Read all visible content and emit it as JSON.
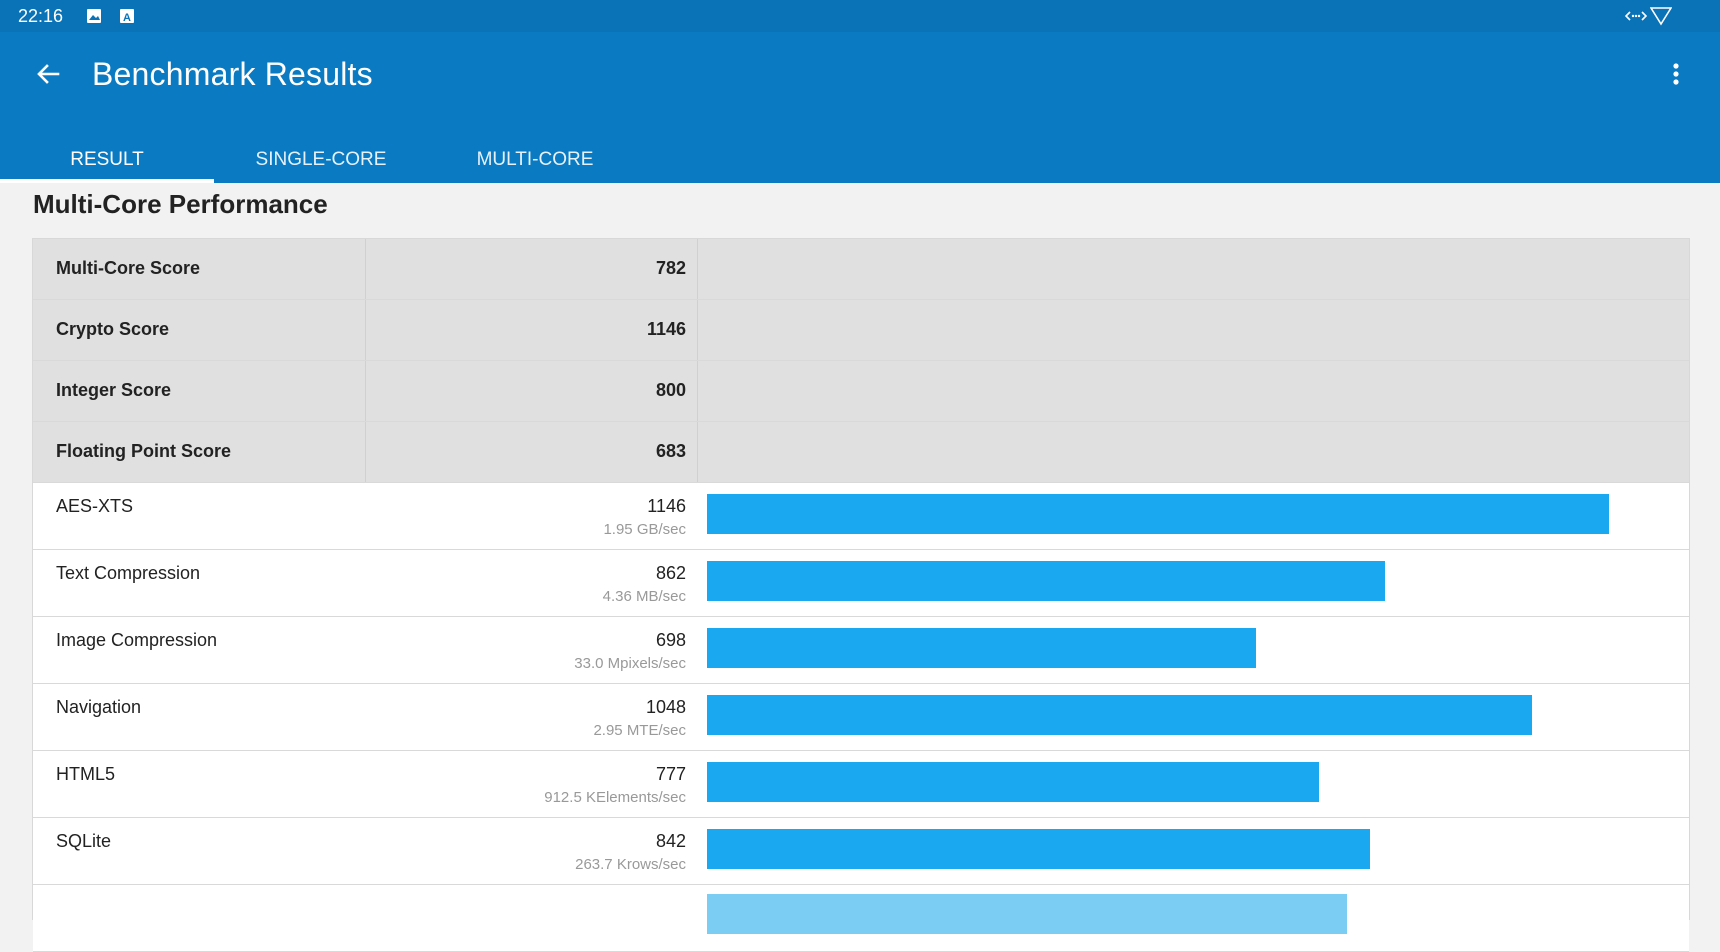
{
  "status_bar": {
    "time": "22:16",
    "left_icons": [
      "image-icon",
      "font-icon"
    ],
    "right_icons": [
      "data-transfer-icon",
      "wifi-icon"
    ]
  },
  "app_bar": {
    "title": "Benchmark Results",
    "back_icon": "back-arrow-icon",
    "menu_icon": "more-vert-icon"
  },
  "tabs": [
    {
      "label": "RESULT",
      "active": true
    },
    {
      "label": "SINGLE-CORE",
      "active": false
    },
    {
      "label": "MULTI-CORE",
      "active": false
    }
  ],
  "section": {
    "title": "Multi-Core Performance"
  },
  "summary_rows": [
    {
      "label": "Multi-Core Score",
      "score": "782"
    },
    {
      "label": "Crypto Score",
      "score": "1146"
    },
    {
      "label": "Integer Score",
      "score": "800"
    },
    {
      "label": "Floating Point Score",
      "score": "683"
    }
  ],
  "benchmarks": [
    {
      "label": "AES-XTS",
      "score": "1146",
      "rate": "1.95 GB/sec",
      "value": 1146
    },
    {
      "label": "Text Compression",
      "score": "862",
      "rate": "4.36 MB/sec",
      "value": 862
    },
    {
      "label": "Image Compression",
      "score": "698",
      "rate": "33.0 Mpixels/sec",
      "value": 698
    },
    {
      "label": "Navigation",
      "score": "1048",
      "rate": "2.95 MTE/sec",
      "value": 1048
    },
    {
      "label": "HTML5",
      "score": "777",
      "rate": "912.5 KElements/sec",
      "value": 777
    },
    {
      "label": "SQLite",
      "score": "842",
      "rate": "263.7 Krows/sec",
      "value": 842
    }
  ],
  "colors": {
    "status_bar": "#0a73b7",
    "app_bar": "#0a7bc2",
    "bar": "#1aa8f0",
    "summary_bg": "#e0e0e0"
  }
}
